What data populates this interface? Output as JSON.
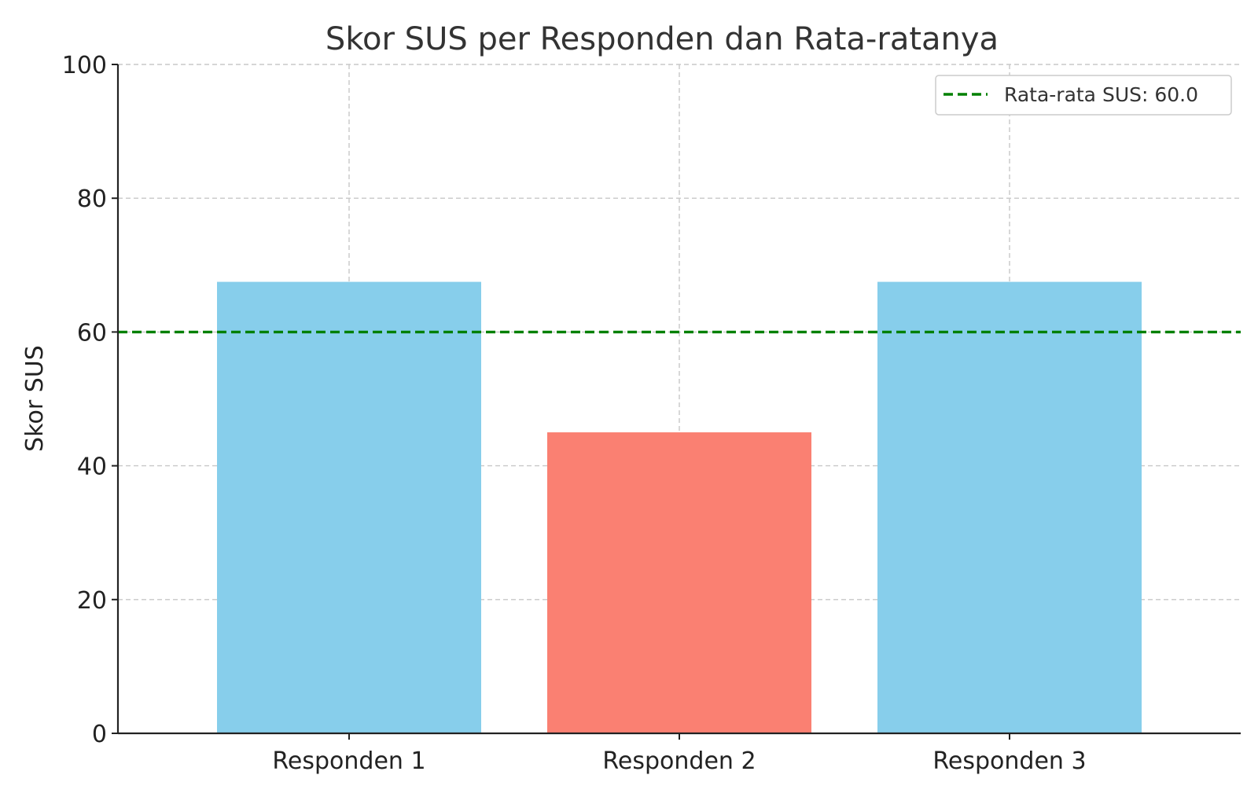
{
  "chart_data": {
    "type": "bar",
    "title": "Skor SUS per Responden dan Rata-ratanya",
    "xlabel": "",
    "ylabel": "Skor SUS",
    "categories": [
      "Responden 1",
      "Responden 2",
      "Responden 3"
    ],
    "values": [
      67.5,
      45.0,
      67.5
    ],
    "bar_colors": [
      "#87CEEB",
      "#FA8072",
      "#87CEEB"
    ],
    "ylim": [
      0,
      100
    ],
    "yticks": [
      0,
      20,
      40,
      60,
      80,
      100
    ],
    "ytick_labels": [
      "0",
      "20",
      "40",
      "60",
      "80",
      "100"
    ],
    "grid": true,
    "reference_line": {
      "value": 60.0,
      "label": "Rata-rata SUS: 60.0",
      "color": "#008000",
      "style": "dashed"
    },
    "legend": {
      "placement": "top-right",
      "entries": [
        "Rata-rata SUS: 60.0"
      ]
    }
  }
}
